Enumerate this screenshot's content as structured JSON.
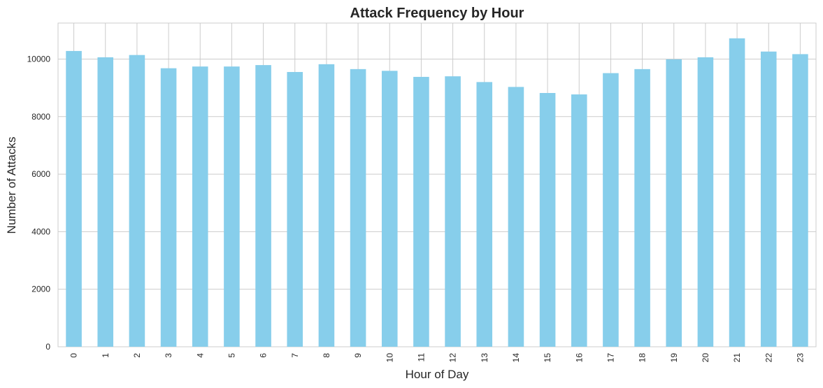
{
  "chart_data": {
    "type": "bar",
    "title": "Attack Frequency by Hour",
    "xlabel": "Hour of Day",
    "ylabel": "Number of Attacks",
    "categories": [
      "0",
      "1",
      "2",
      "3",
      "4",
      "5",
      "6",
      "7",
      "8",
      "9",
      "10",
      "11",
      "12",
      "13",
      "14",
      "15",
      "16",
      "17",
      "18",
      "19",
      "20",
      "21",
      "22",
      "23"
    ],
    "values": [
      10280,
      10060,
      10140,
      9680,
      9740,
      9740,
      9790,
      9550,
      9820,
      9650,
      9590,
      9380,
      9400,
      9200,
      9030,
      8820,
      8770,
      9510,
      9650,
      9990,
      10060,
      10720,
      10260,
      10170
    ],
    "yticks": [
      0,
      2000,
      4000,
      6000,
      8000,
      10000
    ],
    "ylim": [
      0,
      11250
    ],
    "bar_color": "#87ceeb",
    "grid": true,
    "grid_color": "#cccccc"
  }
}
